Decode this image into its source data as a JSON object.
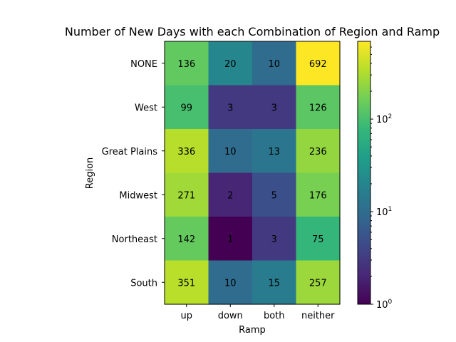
{
  "chart_data": {
    "type": "heatmap",
    "title": "Number of New Days with each Combination of Region and Ramp",
    "xlabel": "Ramp",
    "ylabel": "Region",
    "x_categories": [
      "up",
      "down",
      "both",
      "neither"
    ],
    "y_categories": [
      "NONE",
      "West",
      "Great Plains",
      "Midwest",
      "Northeast",
      "South"
    ],
    "values": [
      [
        136,
        20,
        10,
        692
      ],
      [
        99,
        3,
        3,
        126
      ],
      [
        336,
        10,
        13,
        236
      ],
      [
        271,
        2,
        5,
        176
      ],
      [
        142,
        1,
        3,
        75
      ],
      [
        351,
        10,
        15,
        257
      ]
    ],
    "colorbar": {
      "scale": "log",
      "range": [
        1,
        692
      ],
      "colormap": "viridis",
      "tick_labels": [
        {
          "base": "10",
          "exp": "0"
        },
        {
          "base": "10",
          "exp": "1"
        },
        {
          "base": "10",
          "exp": "2"
        }
      ]
    },
    "grid": false
  }
}
